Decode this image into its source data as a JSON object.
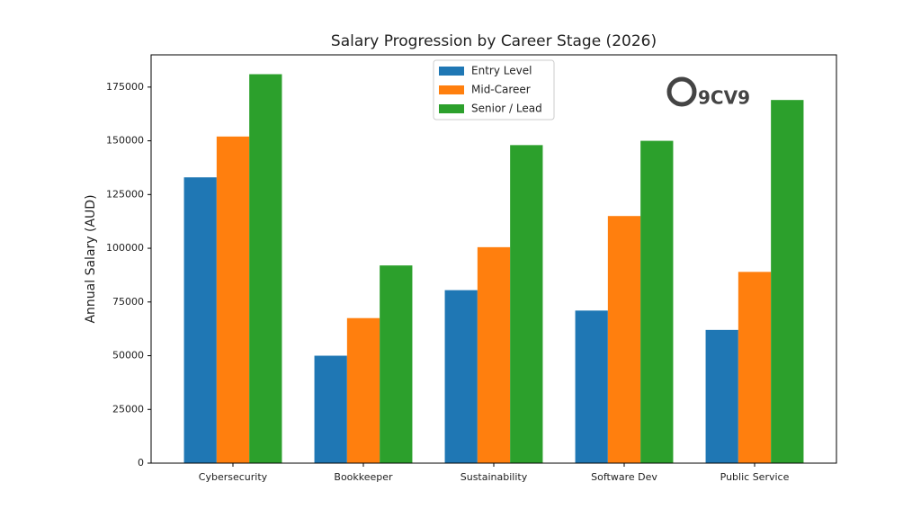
{
  "chart_data": {
    "type": "bar",
    "title": "Salary Progression by Career Stage (2026)",
    "y_label": "Annual Salary (AUD)",
    "watermark": "9CV9",
    "categories": [
      "Cybersecurity",
      "Bookkeeper",
      "Sustainability",
      "Software Dev",
      "Public Service"
    ],
    "series": [
      {
        "name": "Entry Level",
        "color": "#1f77b4",
        "values": [
          133000,
          50000,
          80500,
          71000,
          62000
        ]
      },
      {
        "name": "Mid-Career",
        "color": "#ff7f0e",
        "values": [
          152000,
          67500,
          100500,
          115000,
          89000
        ]
      },
      {
        "name": "Senior / Lead",
        "color": "#2ca02c",
        "values": [
          181000,
          92000,
          148000,
          150000,
          169000
        ]
      }
    ],
    "ylim": [
      0,
      190000
    ],
    "yticks": [
      0,
      25000,
      50000,
      75000,
      100000,
      125000,
      150000,
      175000
    ],
    "legend": "upper center",
    "grid": false
  }
}
